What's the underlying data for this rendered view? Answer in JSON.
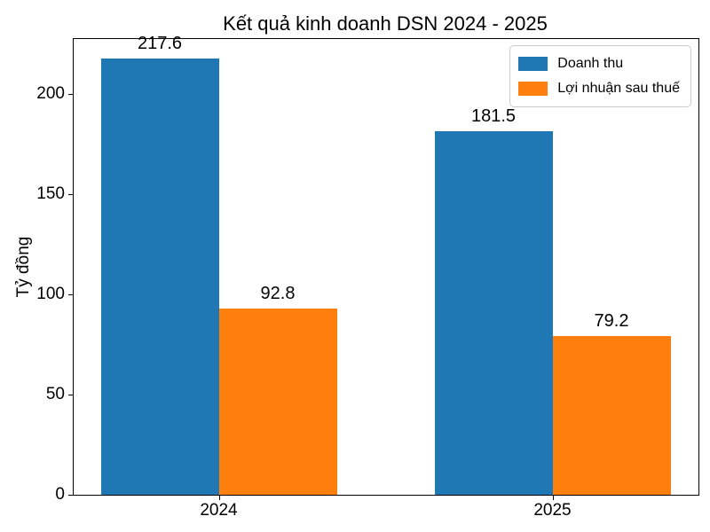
{
  "chart_data": {
    "type": "bar",
    "title": "Kết quả kinh doanh DSN 2024 - 2025",
    "xlabel": "",
    "ylabel": "Tỷ đồng",
    "categories": [
      "2024",
      "2025"
    ],
    "series": [
      {
        "name": "Doanh thu",
        "color": "#1f77b4",
        "values": [
          217.6,
          181.5
        ]
      },
      {
        "name": "Lợi nhuận sau thuế",
        "color": "#ff7f0e",
        "values": [
          92.8,
          79.2
        ]
      }
    ],
    "yticks": [
      0,
      50,
      100,
      150,
      200
    ],
    "ylim": [
      0,
      227.4
    ],
    "grid": false,
    "legend_position": "upper right",
    "value_labels": [
      "217.6",
      "92.8",
      "181.5",
      "79.2"
    ]
  }
}
